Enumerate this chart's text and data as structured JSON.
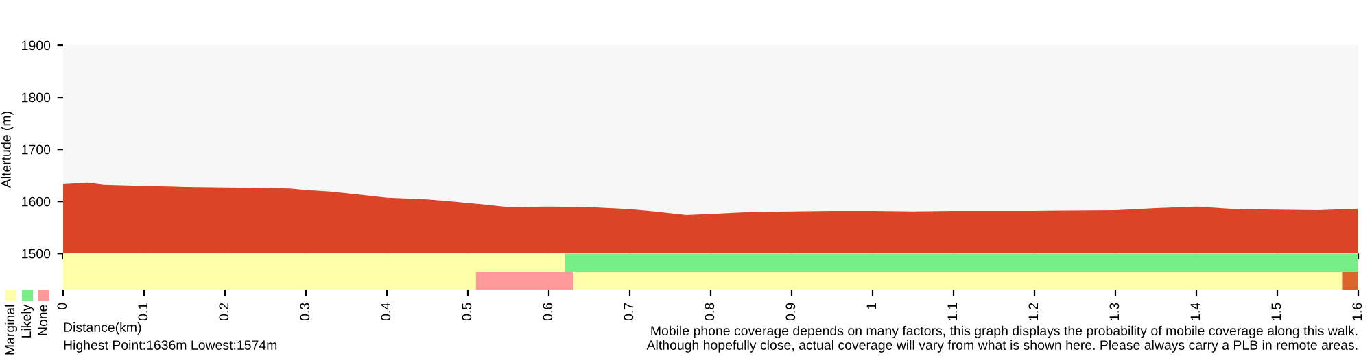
{
  "chart_data": [
    {
      "type": "area",
      "ylabel": "Altertude (m)",
      "ylim": [
        1500,
        1900
      ],
      "yticks": [
        1500,
        1600,
        1700,
        1800,
        1900
      ],
      "xlim": [
        0,
        1.6
      ],
      "xticks": [
        0,
        0.1,
        0.2,
        0.3,
        0.4,
        0.5,
        0.6,
        0.7,
        0.8,
        0.9,
        1,
        1.1,
        1.2,
        1.3,
        1.4,
        1.5,
        1.6
      ],
      "tick_labels": "y",
      "x": [
        0,
        0.03,
        0.05,
        0.1,
        0.15,
        0.2,
        0.25,
        0.28,
        0.3,
        0.33,
        0.36,
        0.4,
        0.45,
        0.48,
        0.52,
        0.55,
        0.6,
        0.65,
        0.7,
        0.73,
        0.77,
        0.8,
        0.85,
        0.9,
        0.95,
        1.0,
        1.05,
        1.1,
        1.2,
        1.3,
        1.35,
        1.4,
        1.45,
        1.5,
        1.55,
        1.6
      ],
      "series": [
        {
          "color": "#dc4428",
          "values": [
            1633,
            1636,
            1632,
            1630,
            1628,
            1627,
            1626,
            1625,
            1622,
            1619,
            1614,
            1607,
            1604,
            1600,
            1594,
            1589,
            1590,
            1589,
            1585,
            1581,
            1574,
            1576,
            1580,
            1581,
            1582,
            1582,
            1581,
            1582,
            1582,
            1583,
            1587,
            1590,
            1585,
            1584,
            1583,
            1586
          ]
        }
      ]
    },
    {
      "type": "bar",
      "orientation": "horizontal",
      "categories": [
        null,
        null
      ],
      "xlabel": "Distance(km)",
      "xlim": [
        0,
        1.6
      ],
      "xticks": [
        0,
        0.1,
        0.2,
        0.3,
        0.4,
        0.5,
        0.6,
        0.7,
        0.8,
        0.9,
        1,
        1.1,
        1.2,
        1.3,
        1.4,
        1.5,
        1.6
      ],
      "tick_labels": "x",
      "legend": "bottom left",
      "stacked": true,
      "series": [
        {
          "name": "Marginal",
          "color": "#ffffaa",
          "values": [
            0.62,
            0.51
          ]
        },
        {
          "name": "Likely",
          "color": "#77ee88",
          "values": [
            0.98,
            0
          ]
        },
        {
          "name": "None",
          "color": "#ff9999",
          "values": [
            0,
            0.12
          ]
        },
        {
          "color": "#ffffaa",
          "values": [
            0,
            0.95
          ]
        },
        {
          "color": "#dc6428",
          "values": [
            0,
            0.02
          ]
        }
      ],
      "annotations": [
        "Highest Point:1636m Lowest:1574m",
        "Mobile phone coverage depends on many factors, this graph displays the probability of mobile coverage along this walk.\nAlthough hopefully close, actual coverage will vary from what is shown here. Please always carry a PLB in remote areas."
      ]
    }
  ]
}
